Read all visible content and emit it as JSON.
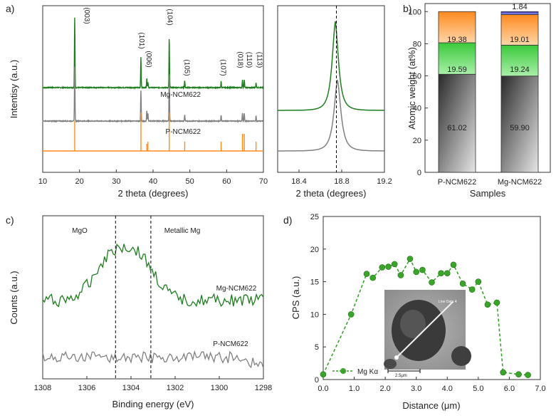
{
  "chart_data": [
    {
      "panel": "a)",
      "type": "line",
      "xlabel": "2 theta (degrees)",
      "ylabel": "Intentisy (a.u.)",
      "xlim": [
        10,
        70
      ],
      "x_ticks": [
        10,
        20,
        30,
        40,
        50,
        60,
        70
      ],
      "colors": {
        "Mg-NCM622": "#1e7d1e",
        "P-NCM622": "#808080",
        "reference": "#ff8c1a"
      },
      "series_labels": [
        "Mg-NCM622",
        "P-NCM622"
      ],
      "peaks": [
        {
          "x": 18.7,
          "label": "(003)",
          "green": 100,
          "gray": 85,
          "ref": 42
        },
        {
          "x": 36.7,
          "label": "(101)",
          "green": 43,
          "gray": 48,
          "ref": 54
        },
        {
          "x": 38.3,
          "label": "(006)",
          "green": 14,
          "gray": 16,
          "ref": 10
        },
        {
          "x": 38.6,
          "label": "",
          "green": 8,
          "gray": 12,
          "ref": 13
        },
        {
          "x": 44.4,
          "label": "(104)",
          "green": 72,
          "gray": 76,
          "ref": 54
        },
        {
          "x": 48.6,
          "label": "(105)",
          "green": 10,
          "gray": 10,
          "ref": 13
        },
        {
          "x": 58.5,
          "label": "(107)",
          "green": 9,
          "gray": 9,
          "ref": 13
        },
        {
          "x": 64.3,
          "label": "(018)",
          "green": 11,
          "gray": 13,
          "ref": 24
        },
        {
          "x": 64.8,
          "label": "(110)",
          "green": 12,
          "gray": 12,
          "ref": 24
        },
        {
          "x": 68.0,
          "label": "(113)",
          "green": 7,
          "gray": 8,
          "ref": 13
        }
      ]
    },
    {
      "panel": "a-zoom",
      "type": "line",
      "xlabel": "2 theta (degrees)",
      "xlim": [
        18.2,
        19.2
      ],
      "x_ticks": [
        18.4,
        18.8,
        19.2
      ],
      "dashed_line_x": 18.75,
      "series": [
        {
          "color": "#1e7d1e",
          "center": 18.74,
          "width": 0.055,
          "height": 100,
          "baseline": 0
        },
        {
          "color": "#808080",
          "center": 18.76,
          "width": 0.06,
          "height": 80,
          "baseline": -42
        }
      ]
    },
    {
      "panel": "b)",
      "type": "bar",
      "xlabel": "Samples",
      "ylabel": "Atomic weight (at%)",
      "ylim": [
        0,
        105
      ],
      "y_ticks": [
        0,
        20,
        40,
        60,
        80,
        100
      ],
      "categories": [
        "P-NCM622",
        "Mg-NCM622"
      ],
      "series": [
        {
          "color": "#555555",
          "values": [
            61.02,
            59.9
          ]
        },
        {
          "color": "#59d659",
          "values": [
            19.59,
            19.24
          ]
        },
        {
          "color": "#ff9a3d",
          "values": [
            19.38,
            19.01
          ]
        },
        {
          "color": "#4848c8",
          "values": [
            0,
            1.84
          ]
        }
      ],
      "value_labels": [
        [
          "61.02",
          "19.59",
          "19.38"
        ],
        [
          "59.90",
          "19.24",
          "19.01",
          "1.84"
        ]
      ]
    },
    {
      "panel": "c)",
      "type": "line",
      "xlabel": "Binding energy (eV)",
      "ylabel": "Counts (a.u.)",
      "xlim": [
        1308,
        1298
      ],
      "x_ticks": [
        1308,
        1306,
        1304,
        1302,
        1300,
        1298
      ],
      "dashed_lines_x": [
        1304.7,
        1303.1
      ],
      "annotations": [
        "MgO",
        "Metallic Mg"
      ],
      "series_labels": [
        "Mg-NCM622",
        "P-NCM622"
      ],
      "colors": {
        "Mg-NCM622": "#1e7d1e",
        "P-NCM622": "#808080"
      }
    },
    {
      "panel": "d)",
      "type": "line",
      "xlabel": "Distance (μm)",
      "ylabel": "CPS (a.u.)",
      "xlim": [
        0,
        7
      ],
      "ylim": [
        0,
        25
      ],
      "x_ticks": [
        "0.0",
        "1.0",
        "2.0",
        "3.0",
        "4.0",
        "5.0",
        "6.0",
        "7.0"
      ],
      "y_ticks": [
        0,
        5,
        10,
        15,
        20,
        25
      ],
      "series": [
        {
          "name": "Mg Kα",
          "color": "#2e9e1e",
          "x": [
            0.0,
            0.9,
            1.4,
            1.6,
            1.9,
            2.1,
            2.3,
            2.5,
            2.8,
            3.0,
            3.2,
            3.5,
            3.8,
            4.0,
            4.2,
            4.5,
            4.8,
            5.0,
            5.3,
            5.6,
            5.8,
            6.3,
            6.6
          ],
          "values": [
            0.8,
            10.0,
            16.2,
            15.6,
            17.2,
            17.3,
            17.7,
            16.0,
            18.5,
            16.5,
            16.8,
            14.9,
            16.3,
            16.3,
            17.6,
            14.7,
            13.8,
            15.0,
            11.5,
            11.8,
            1.1,
            0.8,
            0.7
          ]
        }
      ],
      "inset_labels": [
        "Line Data 4",
        "2.5μm"
      ]
    }
  ]
}
